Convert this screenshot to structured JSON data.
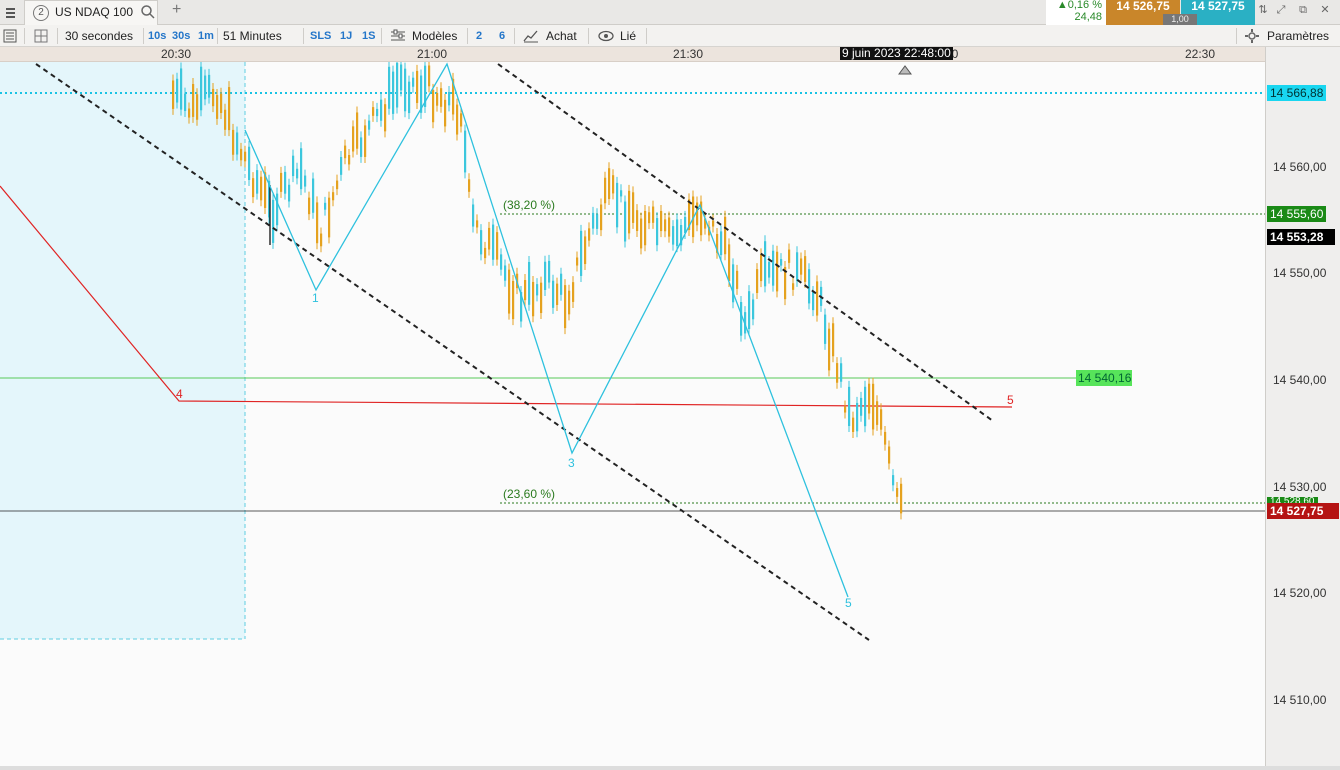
{
  "tab": {
    "badge": "2",
    "title": "US NDAQ 100",
    "add": "+"
  },
  "quote": {
    "change_pct": "▲0,16 %",
    "change_abs": "24,48",
    "sell": "14 526,75",
    "buy": "14 527,75",
    "quantity": "1,00",
    "sell_color": "#c9862a",
    "buy_color": "#2ab0c4"
  },
  "toolbar": {
    "interval": "30 secondes",
    "btn_10s": "10s",
    "btn_30s": "30s",
    "btn_1m": "1m",
    "period": "51 Minutes",
    "btn_sls": "SLS",
    "btn_1j": "1J",
    "btn_1s": "1S",
    "models": "Modèles",
    "btn_2": "2",
    "btn_6": "6",
    "buy": "Achat",
    "linked": "Lié",
    "settings": "Paramètres"
  },
  "time_axis": {
    "ticks": [
      "20:30",
      "21:00",
      "21:30",
      "0",
      "22:30"
    ],
    "cursor_time": "9 juin 2023 22:48:00"
  },
  "price_axis": {
    "ticks": [
      "14 560,00",
      "14 550,00",
      "14 540,00",
      "14 530,00",
      "14 520,00",
      "14 510,00"
    ],
    "tags": {
      "cyan_level": "14 566,88",
      "green_level": "14 555,60",
      "last_close": "14 553,28",
      "current": "14 527,75",
      "hidden_tag": "14 528,60"
    }
  },
  "chart": {
    "horizontal_line_label": "14 540,16",
    "fib_382": "(38,20 %)",
    "fib_236": "(23,60 %)",
    "wave_labels": {
      "w1": "1",
      "w3": "3",
      "w5_cyan": "5",
      "w4_red": "4",
      "w5_red": "5"
    },
    "colors": {
      "up_candle": "#3cc7dd",
      "down_candle": "#e5a21f",
      "wave_line": "#2ec1de",
      "red_line": "#e02424",
      "green_line": "#57c95a",
      "fib_text": "#2a7a1e",
      "current_tag": "#b51313"
    }
  }
}
